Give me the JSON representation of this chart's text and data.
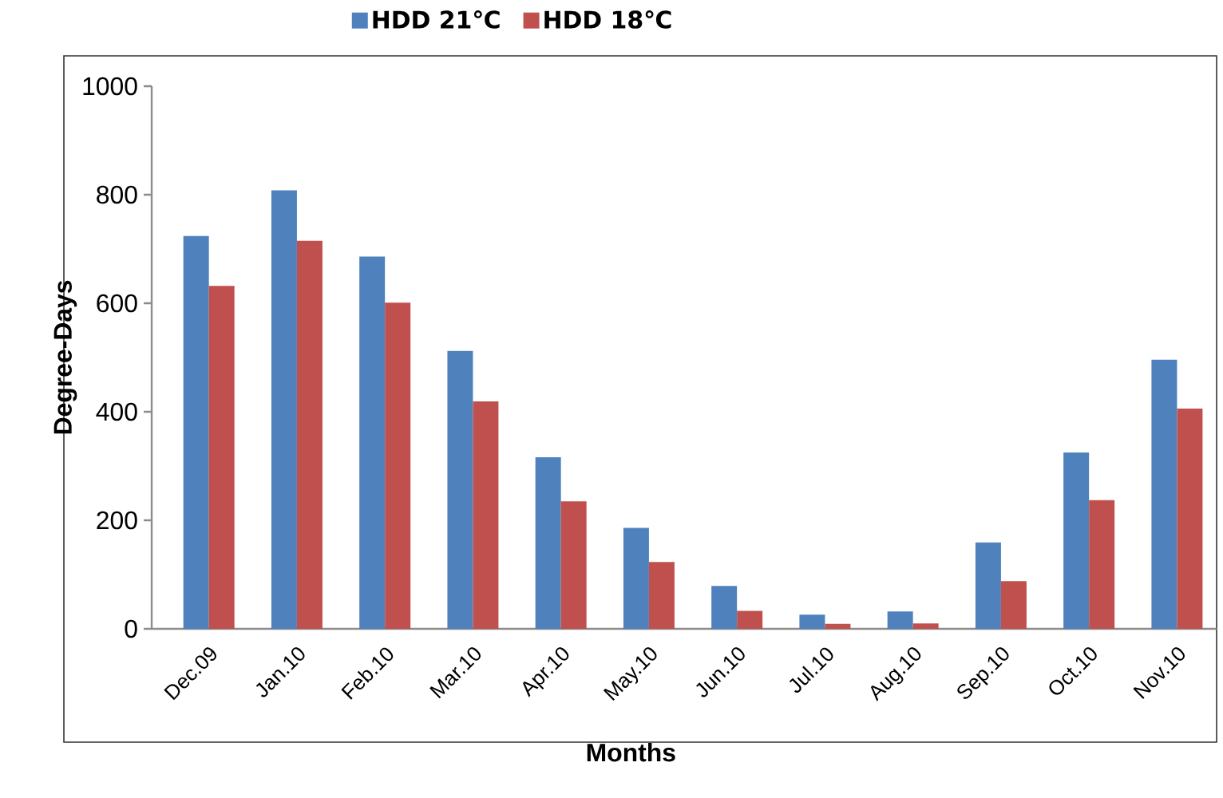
{
  "chart_data": {
    "type": "bar",
    "xlabel": "Months",
    "ylabel": "Degree-Days",
    "categories": [
      "Dec.09",
      "Jan.10",
      "Feb.10",
      "Mar.10",
      "Apr.10",
      "May.10",
      "Jun.10",
      "Jul.10",
      "Aug.10",
      "Sep.10",
      "Oct.10",
      "Nov.10"
    ],
    "series": [
      {
        "name": "HDD 21℃",
        "color": "#4f81bd",
        "values": [
          724,
          808,
          686,
          512,
          316,
          186,
          79,
          26,
          32,
          159,
          325,
          496
        ]
      },
      {
        "name": "HDD 18℃",
        "color": "#c0504d",
        "values": [
          632,
          715,
          601,
          419,
          235,
          123,
          33,
          9,
          10,
          88,
          237,
          406
        ]
      }
    ],
    "ylim": [
      0,
      1000
    ],
    "yticks": [
      0,
      200,
      400,
      600,
      800,
      1000
    ],
    "grid": false,
    "legend": "top"
  }
}
